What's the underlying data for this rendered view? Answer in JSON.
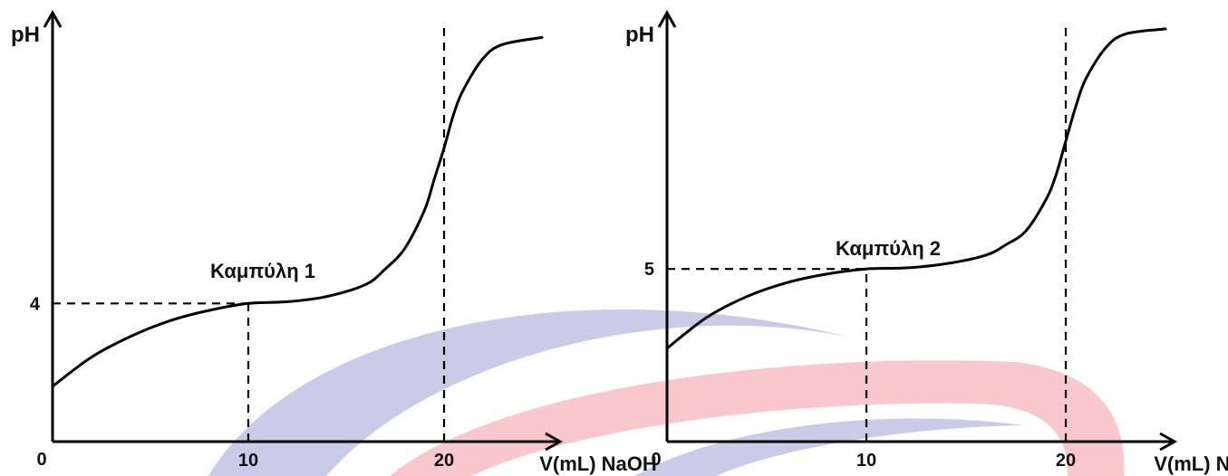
{
  "watermark": {
    "blue": "#c9cbe8",
    "red": "#f8c8cc"
  },
  "chart_data": [
    {
      "type": "line",
      "title": "",
      "annotation": "Καμπύλη 1",
      "ylabel": "pH",
      "xlabel": "V(mL) NaOH",
      "origin_label": "0",
      "xlim": [
        0,
        25
      ],
      "ylim": [
        0,
        12
      ],
      "x_ticks": [
        {
          "value": 10,
          "label": "10"
        },
        {
          "value": 20,
          "label": "20"
        }
      ],
      "y_ticks": [
        {
          "value": 4,
          "label": "4"
        }
      ],
      "guides": [
        {
          "type": "h",
          "y": 4,
          "x_to": 10
        },
        {
          "type": "v",
          "x": 10,
          "y_to": 4
        },
        {
          "type": "v",
          "x": 20,
          "y_to": 12
        }
      ],
      "x": [
        0,
        2,
        4,
        6,
        8,
        10,
        12,
        14,
        16,
        17,
        18,
        19,
        19.5,
        20,
        20.5,
        21,
        22,
        23,
        25
      ],
      "y": [
        1.6,
        2.45,
        3.05,
        3.5,
        3.8,
        4.0,
        4.05,
        4.2,
        4.55,
        5.0,
        5.6,
        6.7,
        7.6,
        8.5,
        9.5,
        10.2,
        11.1,
        11.5,
        11.7
      ]
    },
    {
      "type": "line",
      "title": "",
      "annotation": "Καμπύλη 2",
      "ylabel": "pH",
      "xlabel": "V(mL) NaOH",
      "origin_label": "0",
      "xlim": [
        0,
        25
      ],
      "ylim": [
        0,
        12
      ],
      "x_ticks": [
        {
          "value": 10,
          "label": "10"
        },
        {
          "value": 20,
          "label": "20"
        }
      ],
      "y_ticks": [
        {
          "value": 5,
          "label": "5"
        }
      ],
      "guides": [
        {
          "type": "h",
          "y": 5,
          "x_to": 10
        },
        {
          "type": "v",
          "x": 10,
          "y_to": 5
        },
        {
          "type": "v",
          "x": 20,
          "y_to": 12
        }
      ],
      "x": [
        0,
        2,
        4,
        6,
        8,
        10,
        12,
        14,
        16,
        17,
        18,
        19,
        19.5,
        20,
        20.5,
        21,
        22,
        23,
        25
      ],
      "y": [
        2.7,
        3.6,
        4.2,
        4.6,
        4.85,
        5.0,
        5.03,
        5.15,
        5.4,
        5.7,
        6.1,
        7.0,
        7.7,
        8.7,
        9.7,
        10.5,
        11.4,
        11.8,
        11.95
      ]
    }
  ]
}
